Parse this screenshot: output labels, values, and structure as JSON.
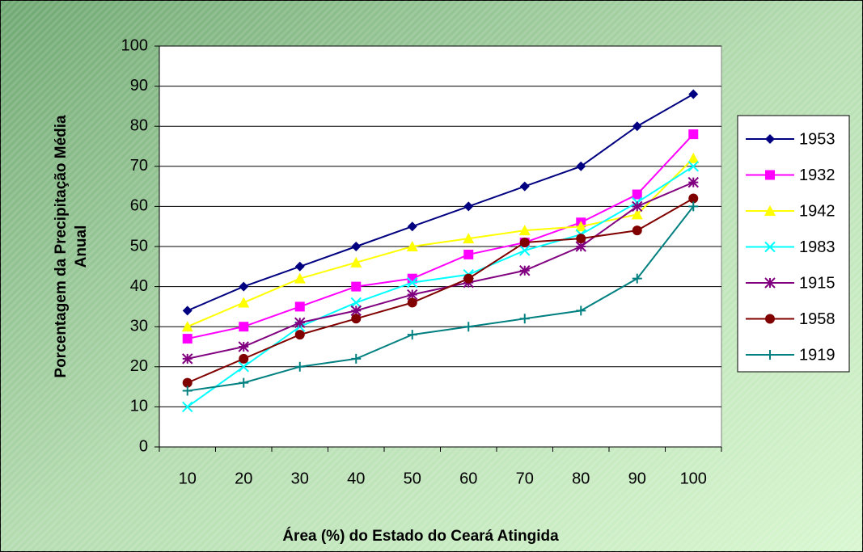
{
  "chart_data": {
    "type": "line",
    "xlabel": "Área (%) do Estado do Ceará Atingida",
    "ylabel": [
      "Porcentagem da Precipitação Média",
      "Anual"
    ],
    "categories": [
      "10",
      "20",
      "30",
      "40",
      "50",
      "60",
      "70",
      "80",
      "90",
      "100"
    ],
    "ylim": [
      0,
      100
    ],
    "yticks": [
      0,
      10,
      20,
      30,
      40,
      50,
      60,
      70,
      80,
      90,
      100
    ],
    "grid": true,
    "legend": "right",
    "series": [
      {
        "name": "1953",
        "color": "#000080",
        "marker": "diamond",
        "values": [
          34,
          40,
          45,
          50,
          55,
          60,
          65,
          70,
          80,
          88
        ]
      },
      {
        "name": "1932",
        "color": "#ff00ff",
        "marker": "square",
        "values": [
          27,
          30,
          35,
          40,
          42,
          48,
          51,
          56,
          63,
          78
        ]
      },
      {
        "name": "1942",
        "color": "#ffff00",
        "marker": "triangle",
        "values": [
          30,
          36,
          42,
          46,
          50,
          52,
          54,
          55,
          58,
          72
        ]
      },
      {
        "name": "1983",
        "color": "#00ffff",
        "marker": "x",
        "values": [
          10,
          20,
          30,
          36,
          41,
          43,
          49,
          53,
          61,
          70
        ]
      },
      {
        "name": "1915",
        "color": "#800080",
        "marker": "star",
        "values": [
          22,
          25,
          31,
          34,
          38,
          41,
          44,
          50,
          60,
          66
        ]
      },
      {
        "name": "1958",
        "color": "#800000",
        "marker": "circle",
        "values": [
          16,
          22,
          28,
          32,
          36,
          42,
          51,
          52,
          54,
          62
        ]
      },
      {
        "name": "1919",
        "color": "#008080",
        "marker": "plus",
        "values": [
          14,
          16,
          20,
          22,
          28,
          30,
          32,
          34,
          42,
          60
        ]
      }
    ]
  }
}
